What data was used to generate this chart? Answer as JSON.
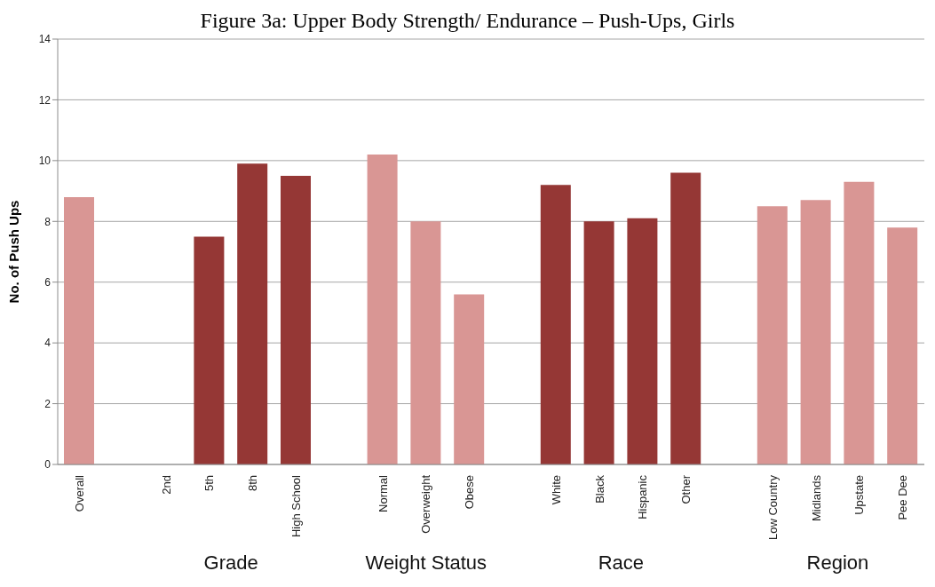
{
  "chart_data": {
    "type": "bar",
    "title": "Figure 3a: Upper Body Strength/ Endurance – Push-Ups, Girls",
    "ylabel": "No. of Push Ups",
    "categories": [
      "Overall",
      null,
      "2nd",
      "5th",
      "8th",
      "High School",
      null,
      "Normal",
      "Overweight",
      "Obese",
      null,
      "White",
      "Black",
      "Hispanic",
      "Other",
      null,
      "Low Country",
      "Midlands",
      "Upstate",
      "Pee Dee"
    ],
    "values": [
      8.8,
      null,
      null,
      7.5,
      9.9,
      9.5,
      null,
      10.2,
      8.0,
      5.6,
      null,
      9.2,
      8.0,
      8.1,
      9.6,
      null,
      8.5,
      8.7,
      9.3,
      7.8
    ],
    "colors": [
      "#d99694",
      null,
      null,
      "#953735",
      "#953735",
      "#953735",
      null,
      "#d99694",
      "#d99694",
      "#d99694",
      null,
      "#953735",
      "#953735",
      "#953735",
      "#953735",
      null,
      "#d99694",
      "#d99694",
      "#d99694",
      "#d99694"
    ],
    "ylim": [
      0,
      14
    ],
    "yticks": [
      0,
      2,
      4,
      6,
      8,
      10,
      12,
      14
    ],
    "grid": "y",
    "annotations": [
      "Grade",
      "Weight Status",
      "Race",
      "Region"
    ]
  }
}
